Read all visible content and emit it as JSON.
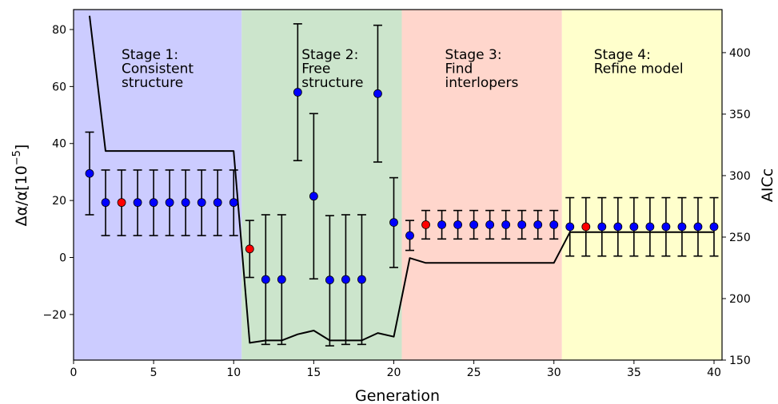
{
  "chart_data": {
    "type": "scatter",
    "xlabel": "Generation",
    "ylabel_main": "Δα/α[10",
    "ylabel_exp": "−5",
    "ylabel_close": "]",
    "ylabel_right": "AICc",
    "xlim": [
      0,
      40.5
    ],
    "ylim_left": [
      -36,
      87
    ],
    "ylim_right": [
      150,
      435
    ],
    "x_ticks": [
      0,
      5,
      10,
      15,
      20,
      25,
      30,
      35,
      40
    ],
    "x_tick_labels": [
      "0",
      "5",
      "10",
      "15",
      "20",
      "25",
      "30",
      "35",
      "40"
    ],
    "y_ticks_left": [
      -20,
      0,
      20,
      40,
      60,
      80
    ],
    "y_tick_labels_left": [
      "−20",
      "0",
      "20",
      "40",
      "60",
      "80"
    ],
    "y_ticks_right": [
      150,
      200,
      250,
      300,
      350,
      400
    ],
    "y_tick_labels_right": [
      "150",
      "200",
      "250",
      "300",
      "350",
      "400"
    ],
    "stages": [
      {
        "lines": [
          "Stage 1:",
          "Consistent",
          "structure"
        ],
        "x_start": 0,
        "x_end": 10.5,
        "color": "#ccccff"
      },
      {
        "lines": [
          "Stage 2:",
          "Free",
          "structure"
        ],
        "x_start": 10.5,
        "x_end": 20.5,
        "color": "#cce5cc"
      },
      {
        "lines": [
          "Stage 3:",
          "Find",
          "interlopers"
        ],
        "x_start": 20.5,
        "x_end": 30.5,
        "color": "#ffd6cc"
      },
      {
        "lines": [
          "Stage 4:",
          "Refine model"
        ],
        "x_start": 30.5,
        "x_end": 40.5,
        "color": "#ffffcc"
      }
    ],
    "points": [
      {
        "x": 1,
        "y": 29.5,
        "lo": 15,
        "hi": 44,
        "highlight": false
      },
      {
        "x": 2,
        "y": 19.3,
        "lo": 7.7,
        "hi": 30.7,
        "highlight": false
      },
      {
        "x": 3,
        "y": 19.3,
        "lo": 7.7,
        "hi": 30.7,
        "highlight": true
      },
      {
        "x": 4,
        "y": 19.3,
        "lo": 7.7,
        "hi": 30.7,
        "highlight": false
      },
      {
        "x": 5,
        "y": 19.3,
        "lo": 7.7,
        "hi": 30.7,
        "highlight": false
      },
      {
        "x": 6,
        "y": 19.3,
        "lo": 7.7,
        "hi": 30.7,
        "highlight": false
      },
      {
        "x": 7,
        "y": 19.3,
        "lo": 7.7,
        "hi": 30.7,
        "highlight": false
      },
      {
        "x": 8,
        "y": 19.3,
        "lo": 7.7,
        "hi": 30.7,
        "highlight": false
      },
      {
        "x": 9,
        "y": 19.3,
        "lo": 7.7,
        "hi": 30.7,
        "highlight": false
      },
      {
        "x": 10,
        "y": 19.3,
        "lo": 7.7,
        "hi": 30.7,
        "highlight": false
      },
      {
        "x": 11,
        "y": 3,
        "lo": -7,
        "hi": 13,
        "highlight": true
      },
      {
        "x": 12,
        "y": -7.7,
        "lo": -30.5,
        "hi": 15,
        "highlight": false
      },
      {
        "x": 13,
        "y": -7.7,
        "lo": -30.5,
        "hi": 15,
        "highlight": false
      },
      {
        "x": 14,
        "y": 58,
        "lo": 34,
        "hi": 82,
        "highlight": false
      },
      {
        "x": 15,
        "y": 21.5,
        "lo": -7.5,
        "hi": 50.5,
        "highlight": false
      },
      {
        "x": 16,
        "y": -7.9,
        "lo": -31,
        "hi": 14.7,
        "highlight": false
      },
      {
        "x": 17,
        "y": -7.7,
        "lo": -30.5,
        "hi": 15,
        "highlight": false
      },
      {
        "x": 18,
        "y": -7.7,
        "lo": -30.5,
        "hi": 15,
        "highlight": false
      },
      {
        "x": 19,
        "y": 57.5,
        "lo": 33.5,
        "hi": 81.5,
        "highlight": false
      },
      {
        "x": 20,
        "y": 12.3,
        "lo": -3.5,
        "hi": 28,
        "highlight": false
      },
      {
        "x": 21,
        "y": 7.7,
        "lo": 2.5,
        "hi": 13,
        "highlight": false
      },
      {
        "x": 22,
        "y": 11.5,
        "lo": 6.5,
        "hi": 16.5,
        "highlight": true
      },
      {
        "x": 23,
        "y": 11.5,
        "lo": 6.5,
        "hi": 16.5,
        "highlight": false
      },
      {
        "x": 24,
        "y": 11.5,
        "lo": 6.5,
        "hi": 16.5,
        "highlight": false
      },
      {
        "x": 25,
        "y": 11.5,
        "lo": 6.5,
        "hi": 16.5,
        "highlight": false
      },
      {
        "x": 26,
        "y": 11.5,
        "lo": 6.5,
        "hi": 16.5,
        "highlight": false
      },
      {
        "x": 27,
        "y": 11.5,
        "lo": 6.5,
        "hi": 16.5,
        "highlight": false
      },
      {
        "x": 28,
        "y": 11.5,
        "lo": 6.5,
        "hi": 16.5,
        "highlight": false
      },
      {
        "x": 29,
        "y": 11.5,
        "lo": 6.5,
        "hi": 16.5,
        "highlight": false
      },
      {
        "x": 30,
        "y": 11.5,
        "lo": 6.5,
        "hi": 16.5,
        "highlight": false
      },
      {
        "x": 31,
        "y": 10.8,
        "lo": 0.5,
        "hi": 21,
        "highlight": false
      },
      {
        "x": 32,
        "y": 10.8,
        "lo": 0.5,
        "hi": 21,
        "highlight": true
      },
      {
        "x": 33,
        "y": 10.8,
        "lo": 0.5,
        "hi": 21,
        "highlight": false
      },
      {
        "x": 34,
        "y": 10.8,
        "lo": 0.5,
        "hi": 21,
        "highlight": false
      },
      {
        "x": 35,
        "y": 10.8,
        "lo": 0.5,
        "hi": 21,
        "highlight": false
      },
      {
        "x": 36,
        "y": 10.8,
        "lo": 0.5,
        "hi": 21,
        "highlight": false
      },
      {
        "x": 37,
        "y": 10.8,
        "lo": 0.5,
        "hi": 21,
        "highlight": false
      },
      {
        "x": 38,
        "y": 10.8,
        "lo": 0.5,
        "hi": 21,
        "highlight": false
      },
      {
        "x": 39,
        "y": 10.8,
        "lo": 0.5,
        "hi": 21,
        "highlight": false
      },
      {
        "x": 40,
        "y": 10.8,
        "lo": 0.5,
        "hi": 21,
        "highlight": false
      }
    ],
    "aicc_line": {
      "x": [
        1,
        2,
        3,
        4,
        5,
        6,
        7,
        8,
        9,
        10,
        11,
        12,
        13,
        14,
        15,
        16,
        17,
        18,
        19,
        20,
        21,
        22,
        23,
        24,
        25,
        26,
        27,
        28,
        29,
        30,
        31,
        32,
        33,
        34,
        35,
        36,
        37,
        38,
        39,
        40
      ],
      "y": [
        430,
        320,
        320,
        320,
        320,
        320,
        320,
        320,
        320,
        320,
        164,
        166,
        166,
        171,
        174,
        166,
        166,
        166,
        172,
        169,
        233,
        229,
        229,
        229,
        229,
        229,
        229,
        229,
        229,
        229,
        254,
        254,
        254,
        254,
        254,
        254,
        254,
        254,
        254,
        254
      ]
    },
    "colors": {
      "point": "#0000ff",
      "highlight": "#ff0000",
      "line": "#000000"
    }
  }
}
